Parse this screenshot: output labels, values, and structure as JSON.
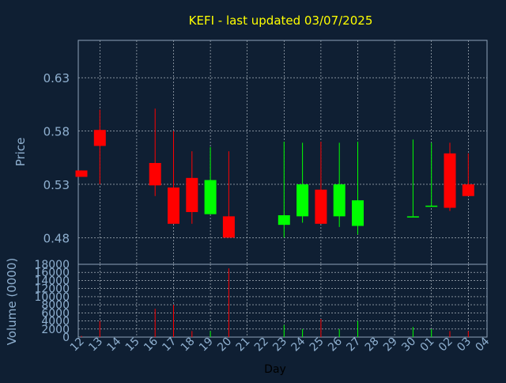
{
  "chart_data": [
    {
      "type": "candlestick",
      "title": "KEFI - last updated 03/07/2025",
      "ylabel": "Price",
      "ylim": [
        0.455,
        0.665
      ],
      "y_ticks": [
        "0.48",
        "0.53",
        "0.58",
        "0.63"
      ],
      "grid": true,
      "colors": {
        "up": "#00ff00",
        "down": "#ff0000",
        "background": "#0f1f33",
        "title": "#ffff00",
        "axis_text": "#8fb0d0"
      },
      "categories": [
        "12",
        "13",
        "14",
        "15",
        "16",
        "17",
        "18",
        "19",
        "20",
        "21",
        "22",
        "23",
        "24",
        "25",
        "26",
        "27",
        "28",
        "29",
        "30",
        "01",
        "02",
        "03",
        "04"
      ],
      "candles": [
        {
          "day": "12",
          "open": 0.543,
          "close": 0.537,
          "high": 0.543,
          "low": 0.537
        },
        {
          "day": "13",
          "open": 0.581,
          "close": 0.566,
          "high": 0.6,
          "low": 0.53
        },
        {
          "day": "16",
          "open": 0.55,
          "close": 0.529,
          "high": 0.601,
          "low": 0.519
        },
        {
          "day": "17",
          "open": 0.527,
          "close": 0.493,
          "high": 0.58,
          "low": 0.493
        },
        {
          "day": "18",
          "open": 0.536,
          "close": 0.504,
          "high": 0.561,
          "low": 0.493
        },
        {
          "day": "19",
          "open": 0.502,
          "close": 0.534,
          "high": 0.565,
          "low": 0.502
        },
        {
          "day": "20",
          "open": 0.5,
          "close": 0.48,
          "high": 0.561,
          "low": 0.48
        },
        {
          "day": "23",
          "open": 0.492,
          "close": 0.501,
          "high": 0.57,
          "low": 0.48
        },
        {
          "day": "24",
          "open": 0.5,
          "close": 0.53,
          "high": 0.569,
          "low": 0.494
        },
        {
          "day": "25",
          "open": 0.525,
          "close": 0.493,
          "high": 0.57,
          "low": 0.493
        },
        {
          "day": "26",
          "open": 0.5,
          "close": 0.53,
          "high": 0.569,
          "low": 0.49
        },
        {
          "day": "27",
          "open": 0.491,
          "close": 0.515,
          "high": 0.57,
          "low": 0.483
        },
        {
          "day": "30",
          "open": 0.5,
          "close": 0.5,
          "high": 0.572,
          "low": 0.5
        },
        {
          "day": "01",
          "open": 0.509,
          "close": 0.51,
          "high": 0.569,
          "low": 0.509
        },
        {
          "day": "02",
          "open": 0.559,
          "close": 0.508,
          "high": 0.569,
          "low": 0.505
        },
        {
          "day": "03",
          "open": 0.53,
          "close": 0.519,
          "high": 0.559,
          "low": 0.519
        }
      ]
    },
    {
      "type": "bar",
      "ylabel": "Volume (0000)",
      "xlabel": "Day",
      "ylim": [
        0,
        18000
      ],
      "y_ticks": [
        "0",
        "2000",
        "4000",
        "6000",
        "8000",
        "10000",
        "12000",
        "14000",
        "16000",
        "18000"
      ],
      "grid": true,
      "categories": [
        "12",
        "13",
        "14",
        "15",
        "16",
        "17",
        "18",
        "19",
        "20",
        "21",
        "22",
        "23",
        "24",
        "25",
        "26",
        "27",
        "28",
        "29",
        "30",
        "01",
        "02",
        "03",
        "04"
      ],
      "bars": [
        {
          "day": "12",
          "value": 300,
          "color": "red"
        },
        {
          "day": "13",
          "value": 4000,
          "color": "red"
        },
        {
          "day": "16",
          "value": 7000,
          "color": "red"
        },
        {
          "day": "17",
          "value": 8000,
          "color": "red"
        },
        {
          "day": "18",
          "value": 1500,
          "color": "red"
        },
        {
          "day": "19",
          "value": 1500,
          "color": "green"
        },
        {
          "day": "20",
          "value": 17000,
          "color": "red"
        },
        {
          "day": "23",
          "value": 3000,
          "color": "green"
        },
        {
          "day": "24",
          "value": 2000,
          "color": "green"
        },
        {
          "day": "25",
          "value": 4500,
          "color": "red"
        },
        {
          "day": "26",
          "value": 2000,
          "color": "green"
        },
        {
          "day": "27",
          "value": 4000,
          "color": "green"
        },
        {
          "day": "30",
          "value": 2500,
          "color": "green"
        },
        {
          "day": "01",
          "value": 2000,
          "color": "green"
        },
        {
          "day": "02",
          "value": 1500,
          "color": "red"
        },
        {
          "day": "03",
          "value": 1500,
          "color": "red"
        }
      ]
    }
  ]
}
